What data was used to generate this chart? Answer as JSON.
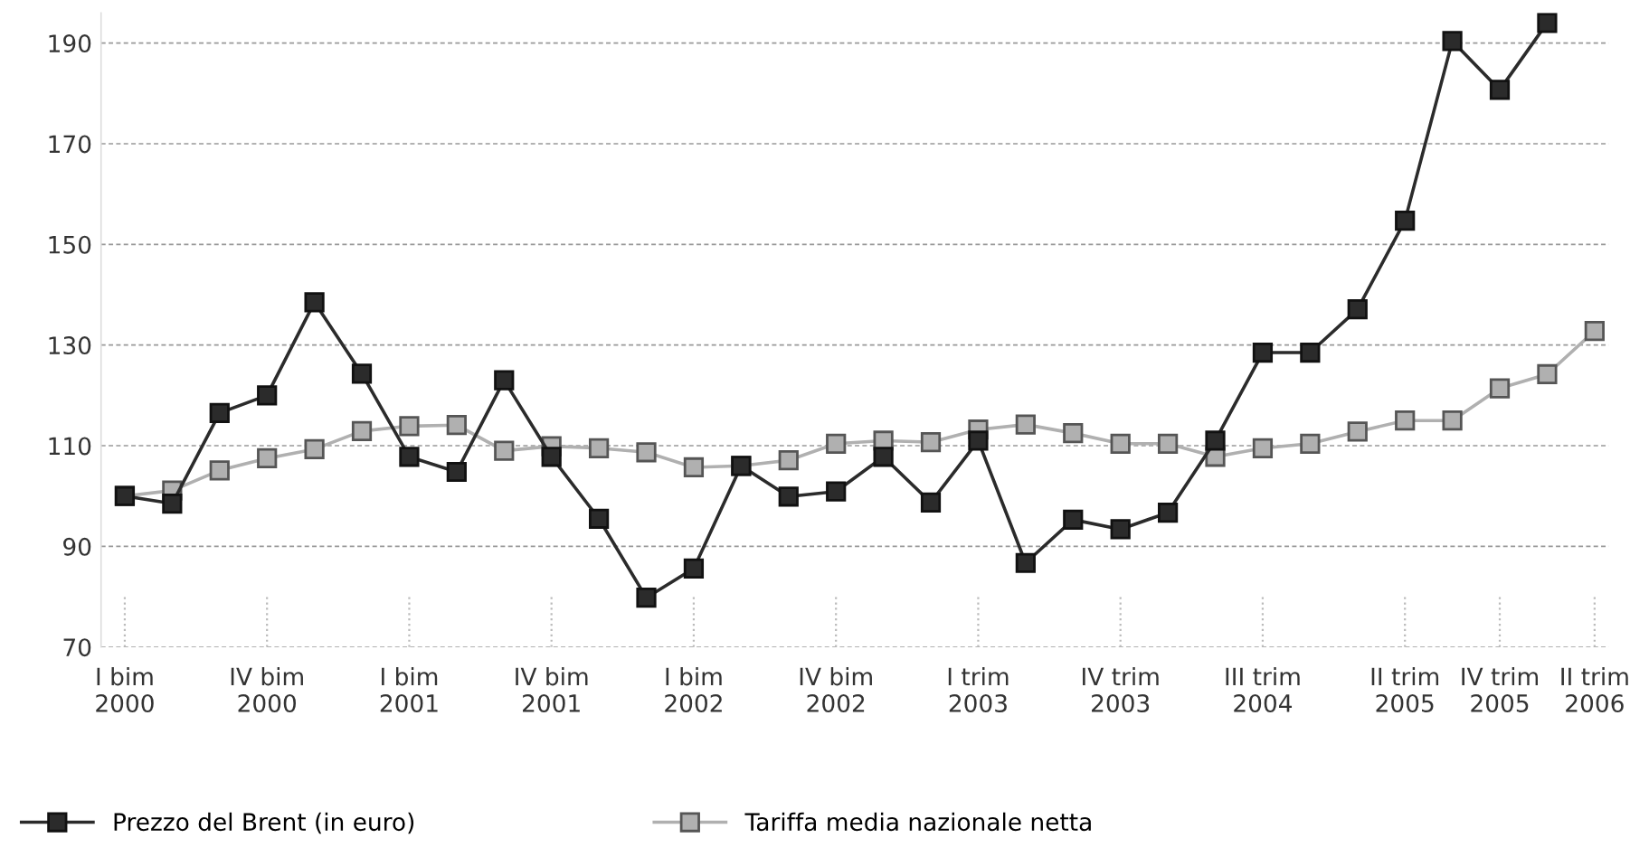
{
  "chart_data": {
    "type": "line",
    "categories": [
      "I bim\n2000",
      null,
      null,
      "IV bim\n2000",
      null,
      null,
      "I bim\n2001",
      null,
      null,
      "IV bim\n2001",
      null,
      null,
      "I bim\n2002",
      null,
      null,
      "IV bim\n2002",
      null,
      null,
      "I trim\n2003",
      null,
      null,
      "IV trim\n2003",
      null,
      null,
      "III trim\n2004",
      null,
      null,
      "II trim\n2005",
      null,
      "IV trim\n2005",
      null,
      "II trim\n2006"
    ],
    "series": [
      {
        "name": "Prezzo del Brent (in euro)",
        "color": "#2b2b2b",
        "values": [
          100,
          98.5,
          116.5,
          120,
          138.5,
          124.3,
          107.8,
          104.8,
          123,
          107.8,
          95.5,
          79.8,
          85.6,
          106,
          99.9,
          100.9,
          107.8,
          98.7,
          111,
          86.7,
          95.3,
          93.4,
          96.7,
          111,
          128.5,
          128.5,
          137.1,
          154.7,
          190.4,
          180.7,
          194,
          null
        ]
      },
      {
        "name": "Tariffa media nazionale netta",
        "color": "#b0b0b0",
        "values": [
          100,
          101.1,
          105.1,
          107.5,
          109.3,
          112.9,
          113.9,
          114.1,
          109,
          109.9,
          109.5,
          108.7,
          105.7,
          106,
          107.1,
          110.4,
          111,
          110.7,
          113.2,
          114.2,
          112.5,
          110.4,
          110.4,
          107.8,
          109.5,
          110.4,
          112.8,
          115,
          115,
          121.4,
          124.2,
          132.8
        ]
      }
    ],
    "ylim": [
      70,
      196
    ],
    "yticks": [
      70,
      90,
      110,
      130,
      150,
      170,
      190
    ],
    "grid": "y",
    "legend": "bottom left",
    "marker": "square",
    "line_style": "solid"
  }
}
